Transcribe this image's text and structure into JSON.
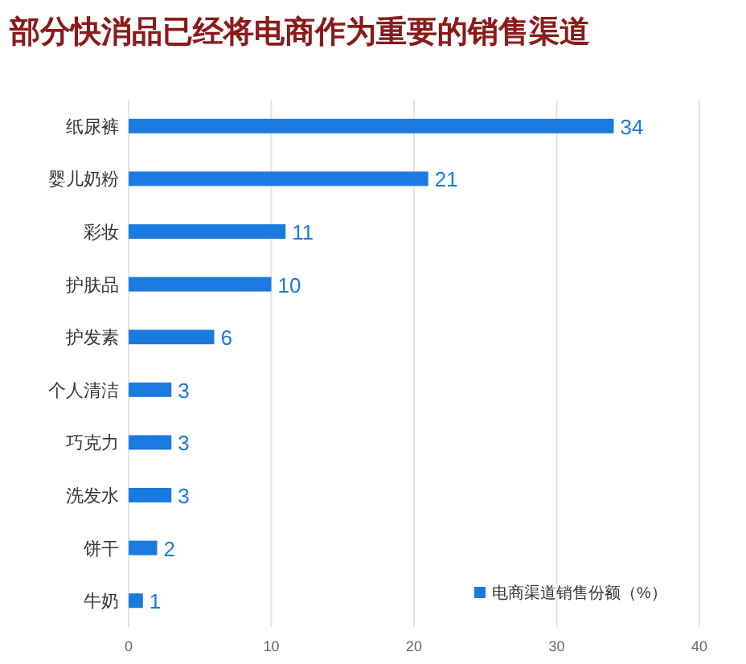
{
  "chart_data": {
    "type": "bar",
    "orientation": "horizontal",
    "title": "部分快消品已经将电商作为重要的销售渠道",
    "categories": [
      "纸尿裤",
      "婴儿奶粉",
      "彩妆",
      "护肤品",
      "护发素",
      "个人清洁",
      "巧克力",
      "洗发水",
      "饼干",
      "牛奶"
    ],
    "series": [
      {
        "name": "电商渠道销售份额（%）",
        "color": "#1a7ae0",
        "values": [
          34,
          21,
          11,
          10,
          6,
          3,
          3,
          3,
          2,
          1
        ]
      }
    ],
    "xlim": [
      0,
      40
    ],
    "xticks": [
      0,
      10,
      20,
      30,
      40
    ],
    "grid": "x",
    "legend": "bottom right",
    "data_labels": true
  }
}
